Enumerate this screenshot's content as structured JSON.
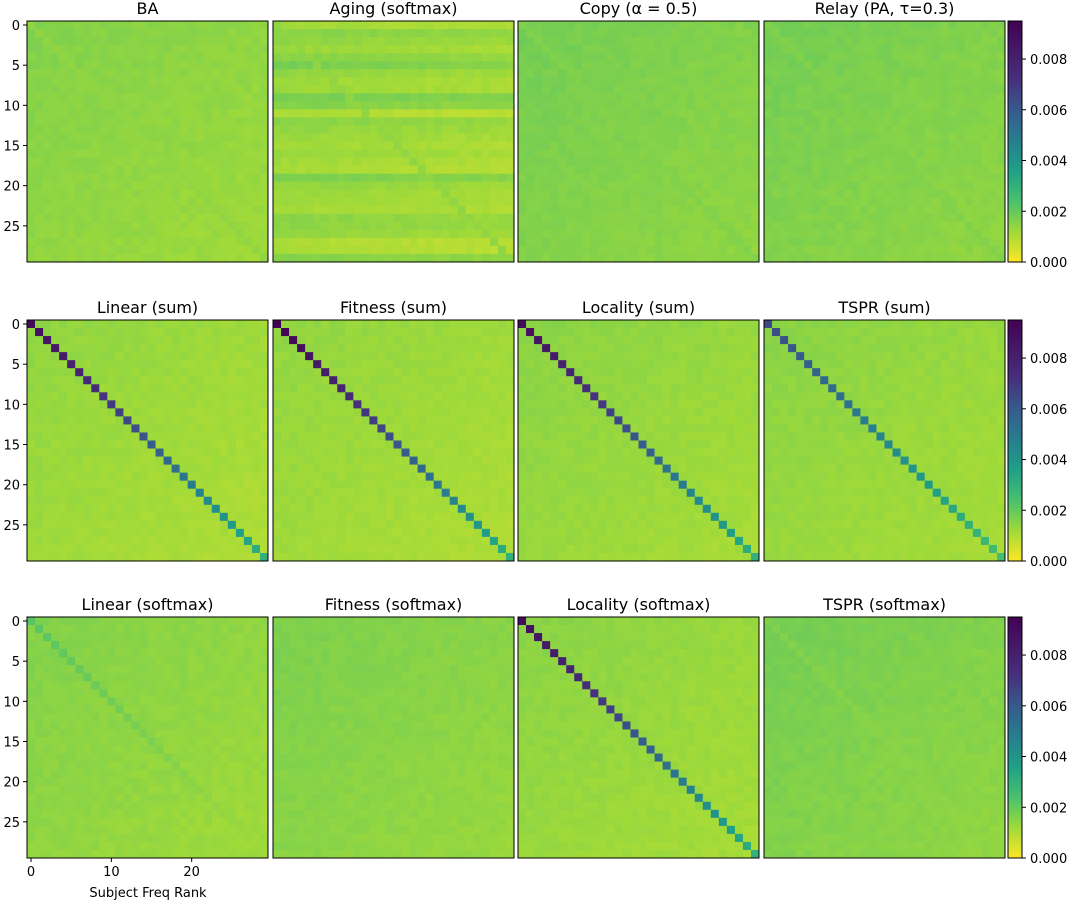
{
  "figure": {
    "xlabel": "Subject Freq Rank"
  },
  "chart_data": {
    "type": "heatmap",
    "matrix_size": 30,
    "colormap": "viridis_r",
    "color_range": [
      0.0,
      0.0095
    ],
    "colorbar_ticks": [
      "0.000",
      "0.002",
      "0.004",
      "0.006",
      "0.008"
    ],
    "colorbar_tick_values": [
      0.0,
      0.002,
      0.004,
      0.006,
      0.008
    ],
    "y_ticks": [
      "0",
      "5",
      "10",
      "15",
      "20",
      "25"
    ],
    "y_tick_values": [
      0,
      5,
      10,
      15,
      20,
      25
    ],
    "x_ticks": [
      "0",
      "10",
      "20"
    ],
    "x_tick_values": [
      0,
      10,
      20
    ],
    "rows": [
      {
        "panels": [
          {
            "title": "BA",
            "diag": [
              0.0014,
              0.0014
            ],
            "off": 0.0012
          },
          {
            "title": "Aging (softmax)",
            "diag": [
              0.0014,
              0.0014
            ],
            "off": 0.0011,
            "row_bands": true
          },
          {
            "title": "Copy (α = 0.5)",
            "diag": [
              0.0016,
              0.0016
            ],
            "off": 0.0014
          },
          {
            "title": "Relay (PA, τ=0.3)",
            "diag": [
              0.0016,
              0.0016
            ],
            "off": 0.0014
          }
        ]
      },
      {
        "panels": [
          {
            "title": "Linear (sum)",
            "diag": [
              0.009,
              0.003
            ],
            "off": 0.001
          },
          {
            "title": "Fitness (sum)",
            "diag": [
              0.0095,
              0.003
            ],
            "off": 0.001
          },
          {
            "title": "Locality (sum)",
            "diag": [
              0.009,
              0.003
            ],
            "off": 0.0011
          },
          {
            "title": "TSPR (sum)",
            "diag": [
              0.0065,
              0.0025
            ],
            "off": 0.0011
          }
        ]
      },
      {
        "panels": [
          {
            "title": "Linear (softmax)",
            "diag": [
              0.0022,
              0.0012
            ],
            "off": 0.0012
          },
          {
            "title": "Fitness (softmax)",
            "diag": [
              0.0016,
              0.0013
            ],
            "off": 0.0013
          },
          {
            "title": "Locality (softmax)",
            "diag": [
              0.009,
              0.003
            ],
            "off": 0.0011
          },
          {
            "title": "TSPR (softmax)",
            "diag": [
              0.0016,
              0.0014
            ],
            "off": 0.0014
          }
        ]
      }
    ]
  }
}
